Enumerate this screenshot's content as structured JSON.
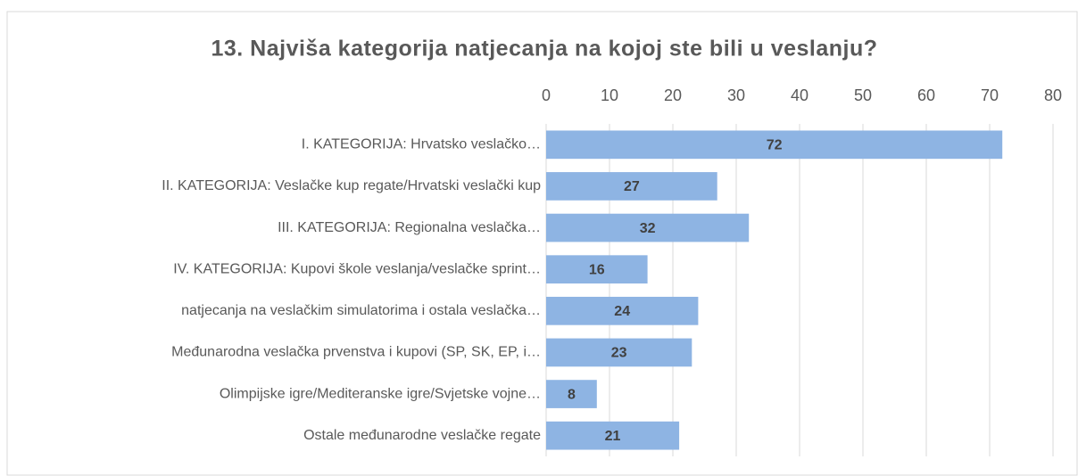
{
  "chart_data": {
    "type": "bar",
    "orientation": "horizontal",
    "title": "13. Najviša kategorija natjecanja na kojoj ste bili u veslanju?",
    "categories": [
      "I. KATEGORIJA: Hrvatsko veslačko…",
      "II. KATEGORIJA: Veslačke kup regate/Hrvatski veslački kup",
      "III. KATEGORIJA: Regionalna veslačka…",
      "IV. KATEGORIJA: Kupovi škole veslanja/veslačke sprint…",
      "natjecanja na veslačkim simulatorima i ostala veslačka…",
      "Međunarodna veslačka prvenstva i kupovi (SP, SK, EP, i…",
      "Olimpijske igre/Mediteranske igre/Svjetske vojne…",
      "Ostale međunarodne veslačke regate"
    ],
    "values": [
      72,
      27,
      32,
      16,
      24,
      23,
      8,
      21
    ],
    "color": "#8eb4e3",
    "xlim": [
      0,
      80
    ],
    "xticks": [
      0,
      10,
      20,
      30,
      40,
      50,
      60,
      70,
      80
    ],
    "grid": true,
    "axis_position": "top"
  }
}
